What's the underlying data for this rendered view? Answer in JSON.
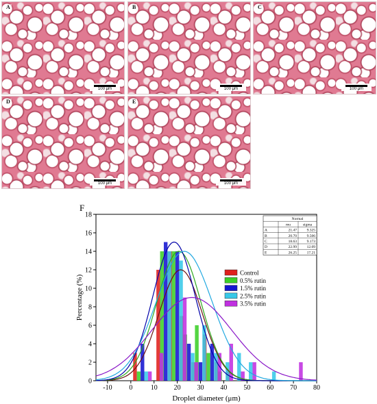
{
  "micrographs": [
    {
      "label": "A",
      "scale": "100 μm"
    },
    {
      "label": "B",
      "scale": "100 μm"
    },
    {
      "label": "C",
      "scale": "100 μm"
    },
    {
      "label": "D",
      "scale": "100 μm"
    },
    {
      "label": "E",
      "scale": "100 μm"
    }
  ],
  "panel_f": {
    "label": "F"
  },
  "chart_data": {
    "type": "bar",
    "xlabel": "Droplet diameter (μm)",
    "ylabel": "Percentage (%)",
    "xlim": [
      -15,
      80
    ],
    "ylim": [
      0,
      18
    ],
    "xticks": [
      -10,
      0,
      10,
      20,
      30,
      40,
      50,
      60,
      70,
      80
    ],
    "yticks": [
      0,
      2,
      4,
      6,
      8,
      10,
      12,
      14,
      16,
      18
    ],
    "bar_width": 1.6,
    "legend_position": "right",
    "series": [
      {
        "name": "Control",
        "color": "#e0201c",
        "curve_color": "#6b1010",
        "points": [
          [
            5,
            3
          ],
          [
            15,
            12
          ],
          [
            20,
            14
          ],
          [
            25,
            7
          ],
          [
            30,
            2
          ],
          [
            35,
            5
          ],
          [
            40,
            2
          ],
          [
            45,
            1
          ],
          [
            50,
            0
          ]
        ]
      },
      {
        "name": "0.5% rutin",
        "color": "#3ccf28",
        "curve_color": "#2ea81c",
        "points": [
          [
            5,
            1
          ],
          [
            15,
            14
          ],
          [
            20,
            14
          ],
          [
            25,
            5
          ],
          [
            30,
            6
          ],
          [
            35,
            3
          ],
          [
            40,
            1
          ],
          [
            45,
            0
          ],
          [
            50,
            0
          ]
        ]
      },
      {
        "name": "1.5% rutin",
        "color": "#1414d0",
        "curve_color": "#0000a8",
        "points": [
          [
            5,
            4
          ],
          [
            15,
            15
          ],
          [
            20,
            14
          ],
          [
            25,
            4
          ],
          [
            30,
            2
          ],
          [
            35,
            4
          ],
          [
            40,
            0
          ],
          [
            45,
            0
          ],
          [
            50,
            0
          ]
        ]
      },
      {
        "name": "2.5% rutin",
        "color": "#38c8e8",
        "curve_color": "#20a8e0",
        "points": [
          [
            5,
            1
          ],
          [
            15,
            14
          ],
          [
            20,
            13
          ],
          [
            25,
            3
          ],
          [
            30,
            6
          ],
          [
            35,
            3
          ],
          [
            40,
            2
          ],
          [
            45,
            3
          ],
          [
            50,
            2
          ],
          [
            60,
            1
          ]
        ]
      },
      {
        "name": "3.5% rutin",
        "color": "#c030e0",
        "curve_color": "#8a18c8",
        "points": [
          [
            5,
            1
          ],
          [
            10,
            3
          ],
          [
            20,
            9
          ],
          [
            25,
            2
          ],
          [
            35,
            3
          ],
          [
            40,
            4
          ],
          [
            45,
            1
          ],
          [
            50,
            2
          ],
          [
            70,
            2
          ]
        ]
      }
    ],
    "fit_table": {
      "title": "Normal",
      "columns": [
        "",
        "mu",
        "sigma"
      ],
      "rows": [
        [
          "A",
          "21.47",
          "9.325"
        ],
        [
          "B",
          "20.70",
          "9.506"
        ],
        [
          "C",
          "18.63",
          "9.173"
        ],
        [
          "D",
          "22.99",
          "12.09"
        ],
        [
          "E",
          "26.25",
          "17.21"
        ]
      ]
    },
    "fits": [
      {
        "series": "Control",
        "mu": 21.47,
        "sigma": 9.325,
        "peak": 12
      },
      {
        "series": "0.5% rutin",
        "mu": 20.7,
        "sigma": 9.506,
        "peak": 14
      },
      {
        "series": "1.5% rutin",
        "mu": 18.63,
        "sigma": 9.173,
        "peak": 15
      },
      {
        "series": "2.5% rutin",
        "mu": 22.99,
        "sigma": 12.09,
        "peak": 14
      },
      {
        "series": "3.5% rutin",
        "mu": 26.25,
        "sigma": 17.21,
        "peak": 9
      }
    ]
  }
}
